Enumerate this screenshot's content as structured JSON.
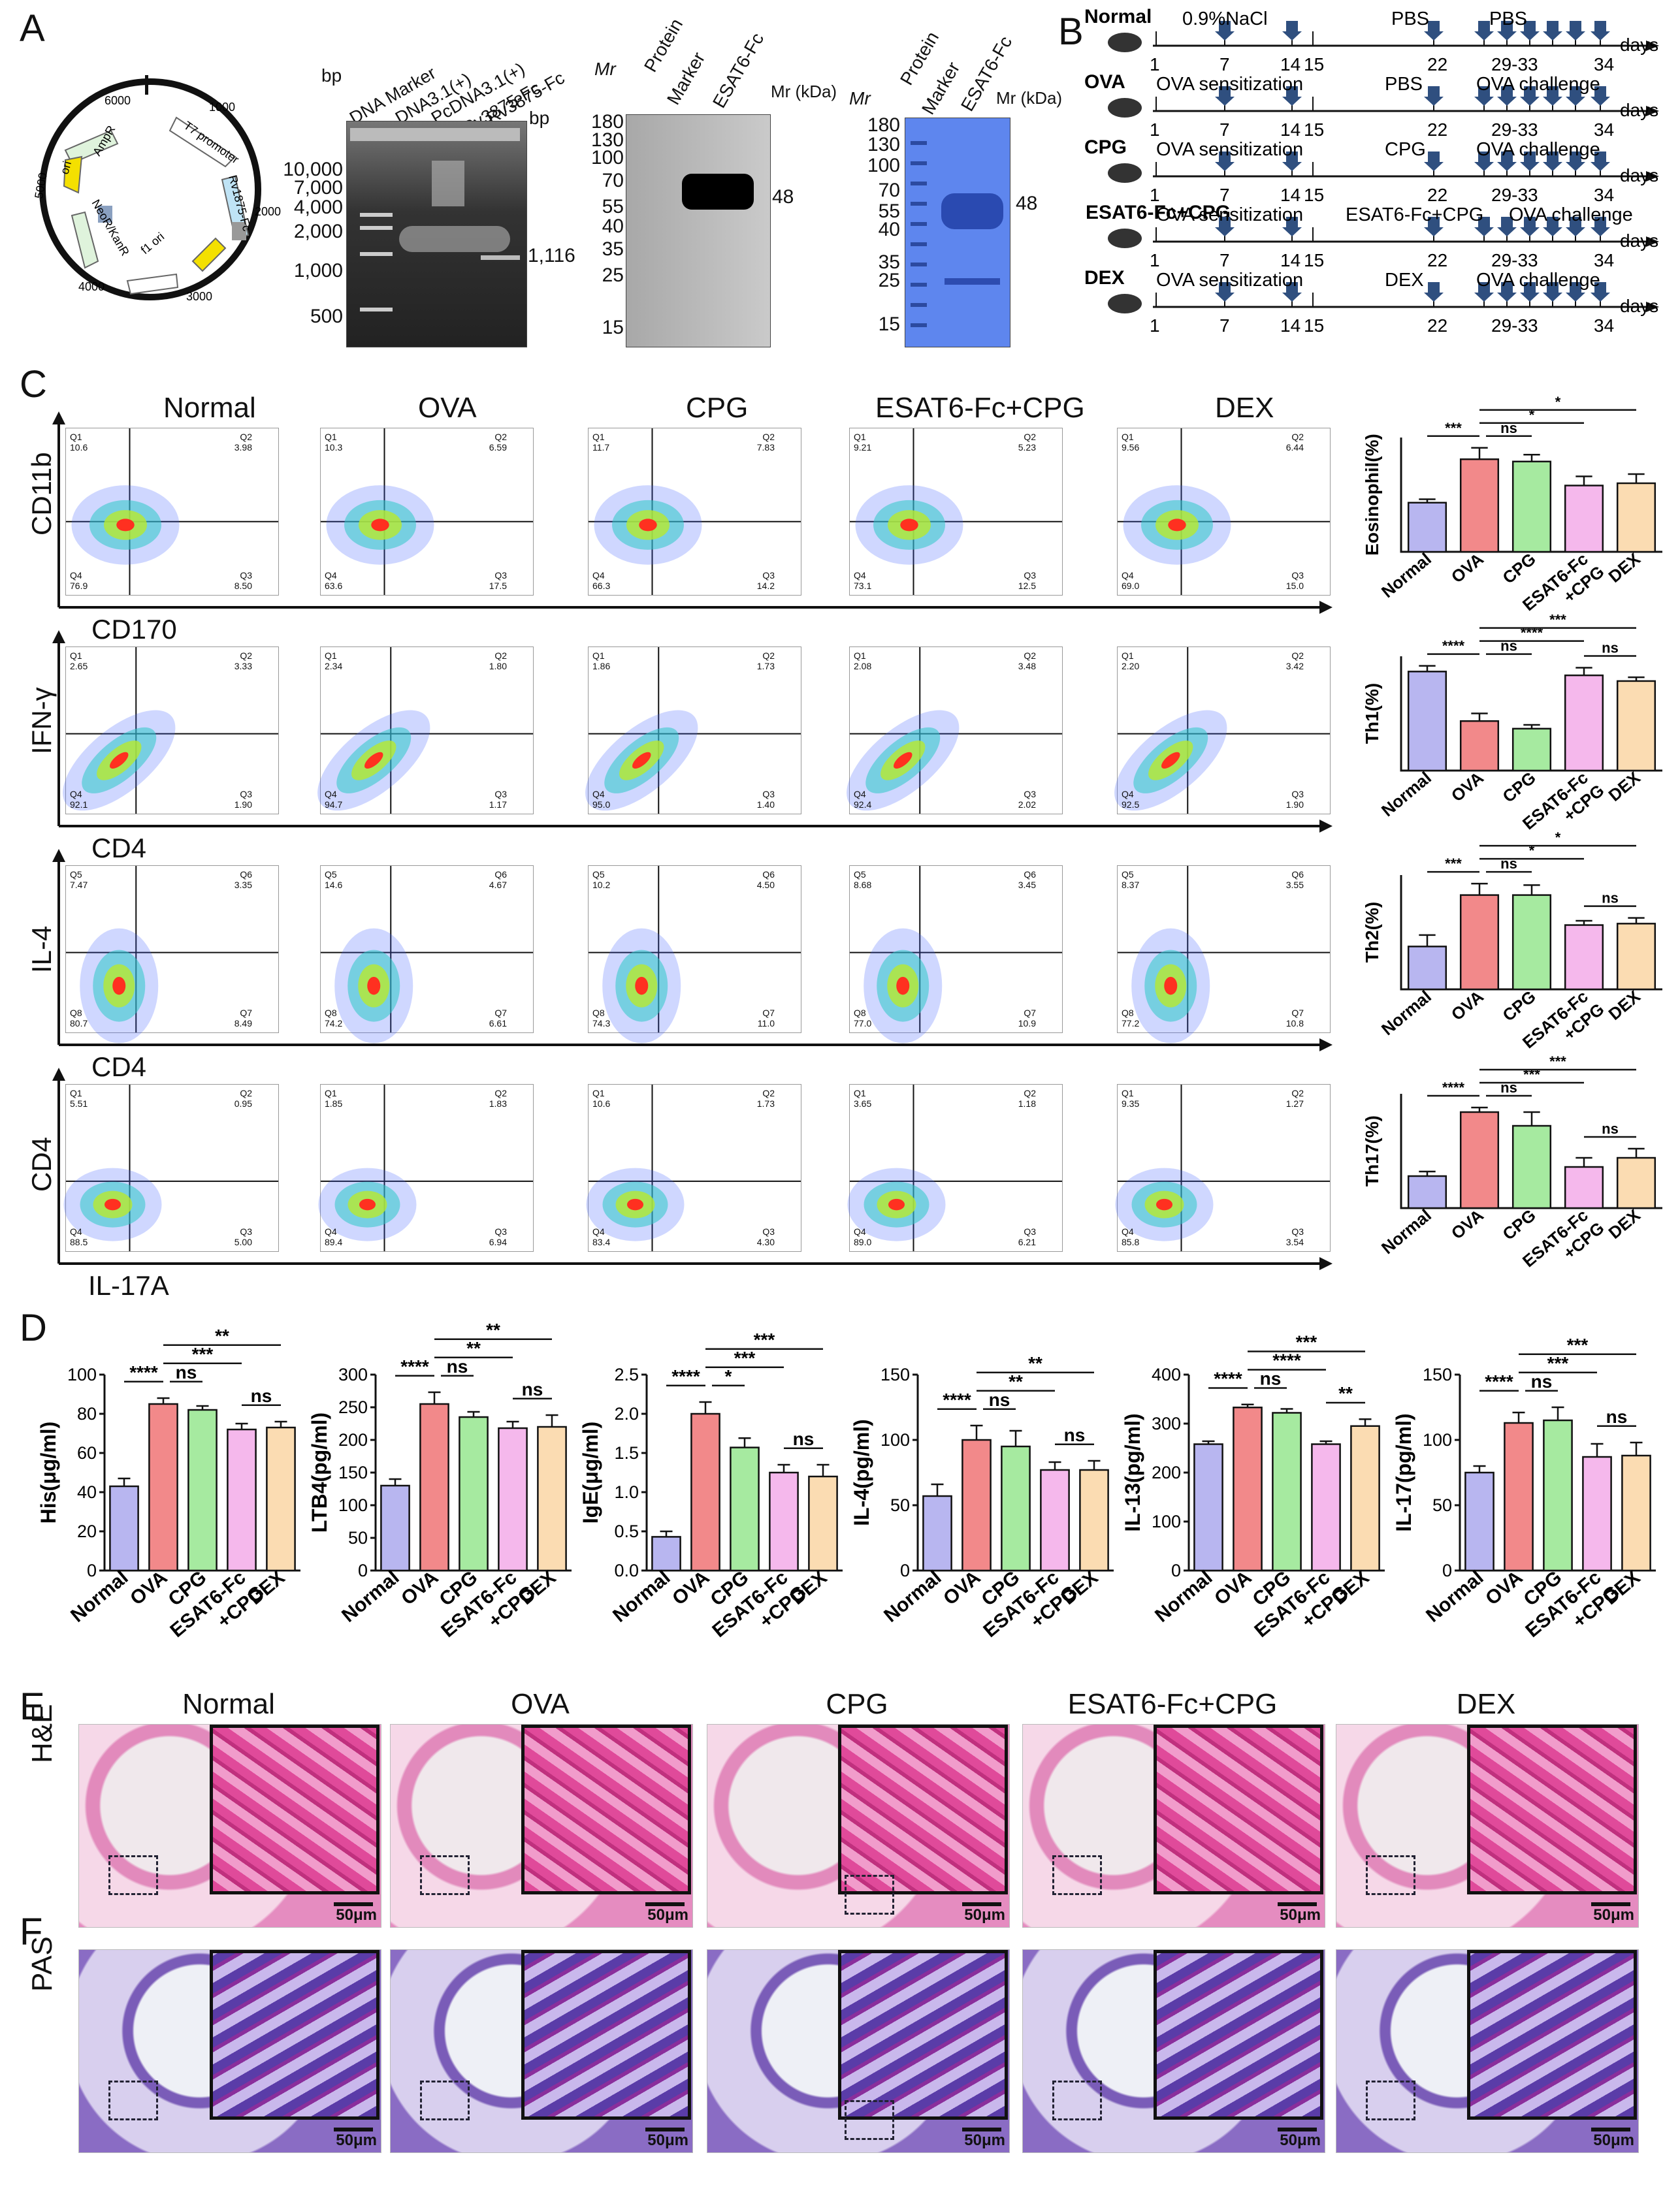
{
  "panels": {
    "A": "A",
    "B": "B",
    "C": "C",
    "D": "D",
    "E": "E",
    "F": "F"
  },
  "panelA": {
    "plasmid_labels": [
      "ori",
      "AmpR",
      "T7 promoter",
      "Rv1875-Fc",
      "f1 ori",
      "NeoR/KanR",
      "6000",
      "1000",
      "2000",
      "3000",
      "4000",
      "5000"
    ],
    "gel1": {
      "lanes": [
        "DNA Marker",
        "DNA3.1(+)",
        "PcDNA3.1(+)",
        "-Rv3875-Fc",
        "Rv3875-Fc"
      ],
      "bp_left": "bp",
      "bp_right": "bp",
      "ladder": [
        "10,000",
        "7,000",
        "4,000",
        "2,000",
        "1,000",
        "500"
      ],
      "band_label": "1,116"
    },
    "gel2": {
      "mr": "Mr",
      "lanes": [
        "Protein",
        "Marker",
        "ESAT6-Fc"
      ],
      "ladder": [
        "180",
        "130",
        "100",
        "70",
        "55",
        "40",
        "35",
        "25",
        "15"
      ],
      "band": "48"
    },
    "gel3": {
      "mr": "Mr",
      "lanes": [
        "Protein",
        "Marker",
        "ESAT6-Fc"
      ],
      "kda": "Mr (kDa)",
      "ladder": [
        "180",
        "130",
        "100",
        "70",
        "55",
        "40",
        "35",
        "25",
        "15"
      ],
      "band": "48"
    },
    "gel2_kda": "Mr (kDa)"
  },
  "panelB": {
    "rows": [
      {
        "group": "Normal",
        "t1": "0.9%NaCl",
        "t2": "PBS",
        "t3": "PBS"
      },
      {
        "group": "OVA",
        "t1": "OVA sensitization",
        "t2": "PBS",
        "t3": "OVA challenge"
      },
      {
        "group": "CPG",
        "t1": "OVA sensitization",
        "t2": "CPG",
        "t3": "OVA challenge"
      },
      {
        "group": "ESAT6-Fc+CPG",
        "t1": "OVA sensitization",
        "t2": "ESAT6-Fc+CPG",
        "t3": "OVA challenge"
      },
      {
        "group": "DEX",
        "t1": "OVA sensitization",
        "t2": "DEX",
        "t3": "OVA challenge"
      }
    ],
    "days": [
      "1",
      "7",
      "14",
      "15",
      "22",
      "29-33",
      "34"
    ],
    "days_label": "days"
  },
  "panelC": {
    "groups": [
      "Normal",
      "OVA",
      "CPG",
      "ESAT6-Fc+CPG",
      "DEX"
    ],
    "rows": [
      {
        "ylabel": "CD11b",
        "xlabel": "CD170",
        "qlabels": [
          "Q1",
          "Q2",
          "Q4",
          "Q3"
        ],
        "values": [
          [
            "10.6",
            "3.98",
            "76.9",
            "8.50"
          ],
          [
            "10.3",
            "6.59",
            "63.6",
            "17.5"
          ],
          [
            "11.7",
            "7.83",
            "66.3",
            "14.2"
          ],
          [
            "9.21",
            "5.23",
            "73.1",
            "12.5"
          ],
          [
            "9.56",
            "6.44",
            "69.0",
            "15.0"
          ]
        ]
      },
      {
        "ylabel": "IFN-γ",
        "xlabel": "CD4",
        "qlabels": [
          "Q1",
          "Q2",
          "Q4",
          "Q3"
        ],
        "values": [
          [
            "2.65",
            "3.33",
            "92.1",
            "1.90"
          ],
          [
            "2.34",
            "1.80",
            "94.7",
            "1.17"
          ],
          [
            "1.86",
            "1.73",
            "95.0",
            "1.40"
          ],
          [
            "2.08",
            "3.48",
            "92.4",
            "2.02"
          ],
          [
            "2.20",
            "3.42",
            "92.5",
            "1.90"
          ]
        ]
      },
      {
        "ylabel": "IL-4",
        "xlabel": "CD4",
        "qlabels": [
          "Q5",
          "Q6",
          "Q8",
          "Q7"
        ],
        "values": [
          [
            "7.47",
            "3.35",
            "80.7",
            "8.49"
          ],
          [
            "14.6",
            "4.67",
            "74.2",
            "6.61"
          ],
          [
            "10.2",
            "4.50",
            "74.3",
            "11.0"
          ],
          [
            "8.68",
            "3.45",
            "77.0",
            "10.9"
          ],
          [
            "8.37",
            "3.55",
            "77.2",
            "10.8"
          ]
        ]
      },
      {
        "ylabel": "CD4",
        "xlabel": "IL-17A",
        "qlabels": [
          "Q1",
          "Q2",
          "Q4",
          "Q3"
        ],
        "values": [
          [
            "5.51",
            "0.95",
            "88.5",
            "5.00"
          ],
          [
            "1.85",
            "1.83",
            "89.4",
            "6.94"
          ],
          [
            "10.6",
            "1.73",
            "83.4",
            "4.30"
          ],
          [
            "3.65",
            "1.18",
            "89.0",
            "6.21"
          ],
          [
            "9.35",
            "1.27",
            "85.8",
            "3.54"
          ]
        ]
      }
    ]
  },
  "chart_data": [
    {
      "type": "bar",
      "ylabel": "Eosinophil(%)",
      "categories": [
        "Normal",
        "OVA",
        "CPG",
        "ESAT6-Fc +CPG",
        "DEX"
      ],
      "values": [
        4.3,
        8.1,
        7.9,
        5.8,
        6.0
      ],
      "errors": [
        0.3,
        1.0,
        0.6,
        0.8,
        0.8
      ],
      "ylim": [
        0,
        10
      ],
      "sig": [
        {
          "a": 0,
          "b": 1,
          "t": "***"
        },
        {
          "a": 1,
          "b": 2,
          "t": "ns"
        },
        {
          "a": 1,
          "b": 3,
          "t": "*"
        },
        {
          "a": 1,
          "b": 4,
          "t": "*"
        }
      ]
    },
    {
      "type": "bar",
      "ylabel": "Th1(%)",
      "categories": [
        "Normal",
        "OVA",
        "CPG",
        "ESAT6-Fc +CPG",
        "DEX"
      ],
      "values": [
        2.6,
        1.3,
        1.1,
        2.5,
        2.35
      ],
      "errors": [
        0.15,
        0.2,
        0.1,
        0.2,
        0.1
      ],
      "ylim": [
        0,
        3
      ],
      "sig": [
        {
          "a": 0,
          "b": 1,
          "t": "****"
        },
        {
          "a": 1,
          "b": 2,
          "t": "ns"
        },
        {
          "a": 1,
          "b": 3,
          "t": "****"
        },
        {
          "a": 1,
          "b": 4,
          "t": "***"
        },
        {
          "a": 3,
          "b": 4,
          "t": "ns"
        }
      ]
    },
    {
      "type": "bar",
      "ylabel": "Th2(%)",
      "categories": [
        "Normal",
        "OVA",
        "CPG",
        "ESAT6-Fc +CPG",
        "DEX"
      ],
      "values": [
        3.0,
        6.6,
        6.6,
        4.5,
        4.6
      ],
      "errors": [
        0.8,
        0.8,
        0.7,
        0.3,
        0.4
      ],
      "ylim": [
        0,
        8
      ],
      "sig": [
        {
          "a": 0,
          "b": 1,
          "t": "***"
        },
        {
          "a": 1,
          "b": 2,
          "t": "ns"
        },
        {
          "a": 1,
          "b": 3,
          "t": "*"
        },
        {
          "a": 1,
          "b": 4,
          "t": "*"
        },
        {
          "a": 3,
          "b": 4,
          "t": "ns"
        }
      ]
    },
    {
      "type": "bar",
      "ylabel": "Th17(%)",
      "categories": [
        "Normal",
        "OVA",
        "CPG",
        "ESAT6-Fc +CPG",
        "DEX"
      ],
      "values": [
        0.7,
        2.1,
        1.8,
        0.9,
        1.1
      ],
      "errors": [
        0.1,
        0.1,
        0.3,
        0.2,
        0.2
      ],
      "ylim": [
        0,
        2.5
      ],
      "sig": [
        {
          "a": 0,
          "b": 1,
          "t": "****"
        },
        {
          "a": 1,
          "b": 2,
          "t": "ns"
        },
        {
          "a": 1,
          "b": 3,
          "t": "***"
        },
        {
          "a": 1,
          "b": 4,
          "t": "***"
        },
        {
          "a": 3,
          "b": 4,
          "t": "ns"
        }
      ]
    },
    {
      "type": "bar",
      "ylabel": "His(μg/ml)",
      "categories": [
        "Normal",
        "OVA",
        "CPG",
        "ESAT6-Fc +CPG",
        "DEX"
      ],
      "values": [
        43,
        85,
        82,
        72,
        73
      ],
      "errors": [
        4,
        3,
        2,
        3,
        3
      ],
      "ylim": [
        0,
        100
      ],
      "yticks": [
        "0",
        "20",
        "40",
        "60",
        "80",
        "100"
      ],
      "sig": [
        {
          "a": 0,
          "b": 1,
          "t": "****"
        },
        {
          "a": 1,
          "b": 2,
          "t": "ns"
        },
        {
          "a": 1,
          "b": 3,
          "t": "***"
        },
        {
          "a": 1,
          "b": 4,
          "t": "**"
        },
        {
          "a": 3,
          "b": 4,
          "t": "ns"
        }
      ]
    },
    {
      "type": "bar",
      "ylabel": "LTB4(pg/ml)",
      "categories": [
        "Normal",
        "OVA",
        "CPG",
        "ESAT6-Fc +CPG",
        "DEX"
      ],
      "values": [
        130,
        255,
        235,
        218,
        220
      ],
      "errors": [
        10,
        18,
        8,
        10,
        18
      ],
      "ylim": [
        0,
        300
      ],
      "yticks": [
        "0",
        "50",
        "100",
        "150",
        "200",
        "250",
        "300"
      ],
      "sig": [
        {
          "a": 0,
          "b": 1,
          "t": "****"
        },
        {
          "a": 1,
          "b": 2,
          "t": "ns"
        },
        {
          "a": 1,
          "b": 3,
          "t": "**"
        },
        {
          "a": 1,
          "b": 4,
          "t": "**"
        },
        {
          "a": 3,
          "b": 4,
          "t": "ns"
        }
      ]
    },
    {
      "type": "bar",
      "ylabel": "IgE(μg/ml)",
      "categories": [
        "Normal",
        "OVA",
        "CPG",
        "ESAT6-Fc +CPG",
        "DEX"
      ],
      "values": [
        0.43,
        2.0,
        1.57,
        1.25,
        1.2
      ],
      "errors": [
        0.07,
        0.15,
        0.12,
        0.1,
        0.15
      ],
      "ylim": [
        0,
        2.5
      ],
      "yticks": [
        "0.0",
        "0.5",
        "1.0",
        "1.5",
        "2.0",
        "2.5"
      ],
      "sig": [
        {
          "a": 0,
          "b": 1,
          "t": "****"
        },
        {
          "a": 1,
          "b": 2,
          "t": "*"
        },
        {
          "a": 1,
          "b": 3,
          "t": "***"
        },
        {
          "a": 1,
          "b": 4,
          "t": "***"
        },
        {
          "a": 3,
          "b": 4,
          "t": "ns"
        }
      ]
    },
    {
      "type": "bar",
      "ylabel": "IL-4(pg/ml)",
      "categories": [
        "Normal",
        "OVA",
        "CPG",
        "ESAT6-Fc +CPG",
        "DEX"
      ],
      "values": [
        57,
        100,
        95,
        77,
        77
      ],
      "errors": [
        9,
        11,
        12,
        6,
        7
      ],
      "ylim": [
        0,
        150
      ],
      "yticks": [
        "0",
        "50",
        "100",
        "150"
      ],
      "sig": [
        {
          "a": 0,
          "b": 1,
          "t": "****"
        },
        {
          "a": 1,
          "b": 2,
          "t": "ns"
        },
        {
          "a": 1,
          "b": 3,
          "t": "**"
        },
        {
          "a": 1,
          "b": 4,
          "t": "**"
        },
        {
          "a": 3,
          "b": 4,
          "t": "ns"
        }
      ]
    },
    {
      "type": "bar",
      "ylabel": "IL-13(pg/ml)",
      "categories": [
        "Normal",
        "OVA",
        "CPG",
        "ESAT6-Fc +CPG",
        "DEX"
      ],
      "values": [
        258,
        333,
        322,
        258,
        295
      ],
      "errors": [
        6,
        6,
        8,
        6,
        14
      ],
      "ylim": [
        0,
        400
      ],
      "yticks": [
        "0",
        "100",
        "200",
        "300",
        "400"
      ],
      "sig": [
        {
          "a": 0,
          "b": 1,
          "t": "****"
        },
        {
          "a": 1,
          "b": 2,
          "t": "ns"
        },
        {
          "a": 1,
          "b": 3,
          "t": "****"
        },
        {
          "a": 1,
          "b": 4,
          "t": "***"
        },
        {
          "a": 3,
          "b": 4,
          "t": "**"
        }
      ]
    },
    {
      "type": "bar",
      "ylabel": "IL-17(pg/ml)",
      "categories": [
        "Normal",
        "OVA",
        "CPG",
        "ESAT6-Fc +CPG",
        "DEX"
      ],
      "values": [
        75,
        113,
        115,
        87,
        88
      ],
      "errors": [
        5,
        8,
        10,
        10,
        10
      ],
      "ylim": [
        0,
        150
      ],
      "yticks": [
        "0",
        "50",
        "100",
        "150"
      ],
      "sig": [
        {
          "a": 0,
          "b": 1,
          "t": "****"
        },
        {
          "a": 1,
          "b": 2,
          "t": "ns"
        },
        {
          "a": 1,
          "b": 3,
          "t": "***"
        },
        {
          "a": 1,
          "b": 4,
          "t": "***"
        },
        {
          "a": 3,
          "b": 4,
          "t": "ns"
        }
      ]
    }
  ],
  "panelE": {
    "groups": [
      "Normal",
      "OVA",
      "CPG",
      "ESAT6-Fc+CPG",
      "DEX"
    ],
    "row_label": "H&E",
    "scale": "50μm"
  },
  "panelF": {
    "row_label": "PAS",
    "scale": "50μm"
  },
  "colors": {
    "Normal": "#b8b6f0",
    "OVA": "#f2898a",
    "CPG": "#a6eaa0",
    "ESAT6-Fc +CPG": "#f5b8ec",
    "DEX": "#fbdcb2"
  }
}
